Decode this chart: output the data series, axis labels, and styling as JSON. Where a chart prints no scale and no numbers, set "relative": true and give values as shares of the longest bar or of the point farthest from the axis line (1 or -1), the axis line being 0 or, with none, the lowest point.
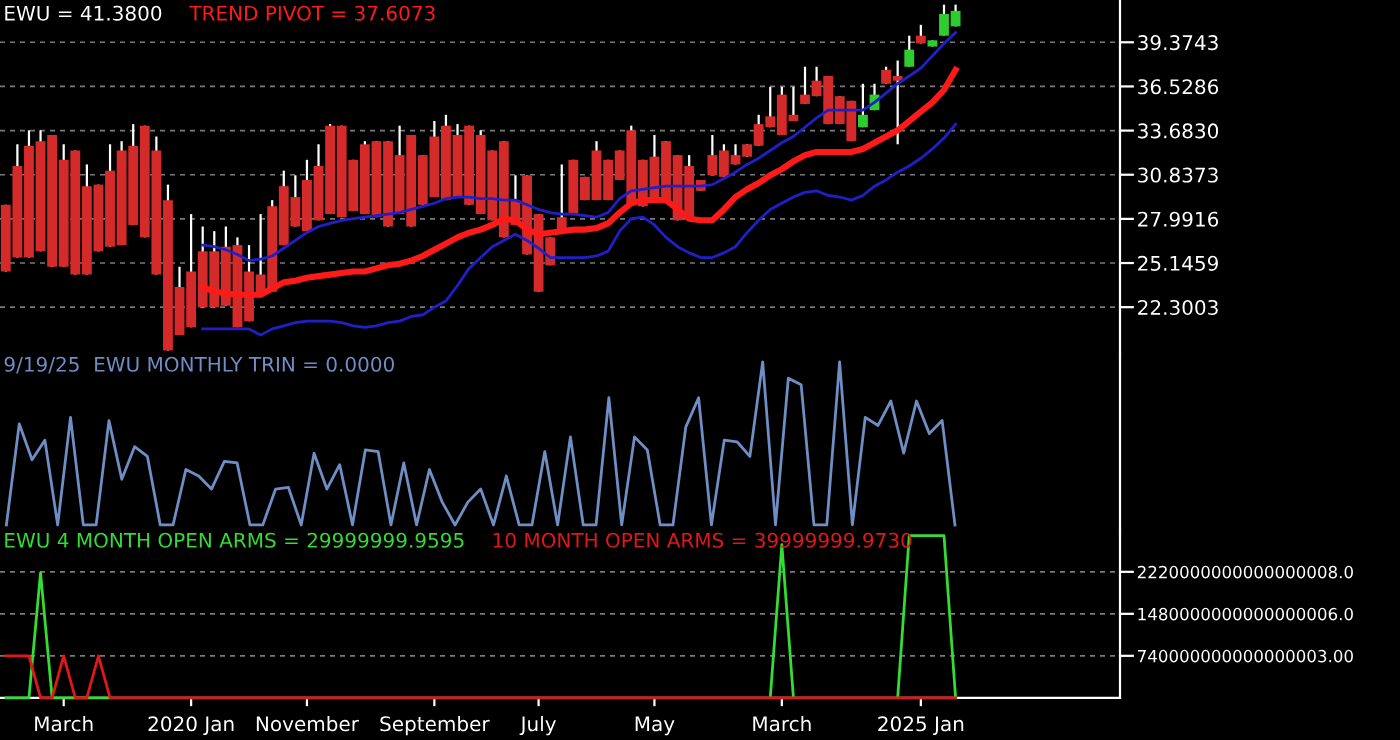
{
  "chart_data": [
    {
      "type": "candlestick",
      "title": "EWU = 41.3800",
      "categories": [
        null,
        null,
        null,
        null,
        null,
        null,
        null,
        null,
        null,
        null,
        null,
        null,
        null,
        null,
        null,
        null,
        null,
        null,
        null,
        null,
        null,
        null,
        null,
        null,
        null,
        null,
        null,
        null,
        null,
        null,
        null,
        null,
        null,
        null,
        null,
        null,
        null,
        null,
        null,
        null,
        null,
        null,
        null,
        null,
        null,
        null,
        null,
        null,
        null,
        null,
        null,
        null,
        null,
        null,
        null,
        null,
        null,
        null,
        null,
        null,
        null,
        null,
        null,
        null,
        null,
        null,
        null,
        null,
        null,
        null,
        null,
        null,
        null,
        null,
        null,
        null,
        null,
        null,
        null,
        null,
        null,
        null,
        null
      ],
      "ohlc": [
        [
          28.9,
          28.9,
          24.6,
          24.6
        ],
        [
          31.4,
          32.8,
          25.5,
          25.5
        ],
        [
          32.7,
          33.7,
          25.5,
          25.5
        ],
        [
          33.0,
          33.7,
          25.9,
          25.9
        ],
        [
          33.4,
          33.4,
          24.9,
          24.9
        ],
        [
          31.8,
          32.8,
          24.9,
          24.9
        ],
        [
          32.4,
          32.4,
          24.4,
          24.4
        ],
        [
          30.1,
          31.5,
          24.4,
          24.4
        ],
        [
          30.2,
          30.2,
          25.9,
          25.9
        ],
        [
          31.1,
          32.8,
          26.2,
          26.2
        ],
        [
          32.4,
          33.0,
          26.3,
          26.3
        ],
        [
          32.7,
          34.1,
          27.6,
          27.6
        ],
        [
          34.0,
          34.0,
          26.8,
          26.8
        ],
        [
          32.4,
          33.3,
          24.4,
          24.4
        ],
        [
          29.2,
          30.2,
          19.5,
          19.5
        ],
        [
          23.6,
          24.9,
          20.5,
          20.5
        ],
        [
          24.6,
          28.3,
          21.0,
          21.0
        ],
        [
          25.9,
          27.5,
          22.3,
          22.3
        ],
        [
          25.9,
          27.2,
          22.3,
          22.3
        ],
        [
          26.2,
          27.5,
          22.4,
          22.4
        ],
        [
          26.3,
          26.8,
          21.0,
          21.0
        ],
        [
          24.6,
          26.3,
          21.4,
          21.4
        ],
        [
          24.4,
          28.3,
          23.1,
          23.1
        ],
        [
          28.8,
          29.2,
          23.3,
          23.3
        ],
        [
          30.1,
          31.1,
          26.3,
          26.3
        ],
        [
          29.4,
          30.8,
          27.5,
          27.5
        ],
        [
          30.5,
          31.8,
          27.2,
          27.2
        ],
        [
          31.4,
          32.8,
          27.9,
          27.9
        ],
        [
          34.0,
          34.1,
          28.3,
          28.3
        ],
        [
          34.0,
          34.0,
          28.1,
          28.1
        ],
        [
          31.8,
          31.8,
          28.5,
          28.5
        ],
        [
          32.8,
          33.0,
          28.3,
          28.3
        ],
        [
          33.0,
          33.0,
          28.1,
          28.1
        ],
        [
          33.0,
          33.0,
          27.5,
          27.5
        ],
        [
          32.1,
          34.0,
          28.3,
          28.3
        ],
        [
          33.4,
          33.4,
          27.5,
          27.5
        ],
        [
          32.1,
          32.1,
          28.9,
          28.9
        ],
        [
          33.3,
          34.3,
          29.4,
          29.4
        ],
        [
          34.0,
          34.7,
          29.2,
          29.2
        ],
        [
          33.4,
          34.1,
          29.4,
          29.4
        ],
        [
          34.0,
          34.0,
          28.9,
          28.9
        ],
        [
          33.4,
          33.7,
          28.3,
          28.3
        ],
        [
          32.4,
          32.4,
          27.9,
          27.9
        ],
        [
          33.0,
          33.0,
          26.8,
          26.8
        ],
        [
          29.2,
          30.8,
          27.6,
          27.6
        ],
        [
          30.8,
          30.8,
          25.7,
          25.7
        ],
        [
          28.3,
          28.3,
          23.3,
          23.3
        ],
        [
          26.8,
          26.8,
          25.0,
          25.0
        ],
        [
          28.1,
          31.5,
          27.2,
          27.2
        ],
        [
          31.8,
          31.8,
          28.3,
          28.3
        ],
        [
          30.7,
          30.7,
          29.2,
          29.2
        ],
        [
          32.4,
          33.0,
          29.2,
          29.2
        ],
        [
          31.8,
          31.8,
          29.2,
          29.2
        ],
        [
          32.4,
          32.4,
          30.5,
          30.5
        ],
        [
          33.7,
          34.0,
          28.9,
          28.9
        ],
        [
          31.8,
          31.8,
          28.8,
          28.8
        ],
        [
          32.0,
          33.4,
          29.4,
          29.4
        ],
        [
          33.0,
          33.0,
          29.2,
          29.2
        ],
        [
          32.1,
          32.1,
          27.9,
          27.9
        ],
        [
          31.4,
          32.1,
          28.1,
          28.1
        ],
        [
          30.5,
          30.5,
          29.8,
          29.8
        ],
        [
          32.1,
          33.4,
          30.8,
          30.8
        ],
        [
          32.4,
          32.8,
          30.7,
          30.7
        ],
        [
          32.1,
          32.8,
          31.5,
          31.5
        ],
        [
          32.8,
          32.8,
          32.0,
          32.0
        ],
        [
          34.1,
          34.7,
          32.7,
          32.7
        ],
        [
          34.6,
          36.5,
          33.9,
          33.9
        ],
        [
          36.0,
          36.5,
          33.4,
          33.4
        ],
        [
          34.7,
          36.5,
          34.3,
          34.3
        ],
        [
          36.0,
          37.8,
          35.4,
          35.4
        ],
        [
          36.9,
          37.8,
          35.9,
          35.9
        ],
        [
          37.2,
          37.2,
          34.1,
          34.1
        ],
        [
          35.9,
          35.9,
          34.1,
          34.1
        ],
        [
          35.6,
          35.6,
          33.0,
          33.0
        ],
        [
          33.9,
          36.7,
          33.9,
          34.7
        ],
        [
          35.0,
          36.7,
          35.0,
          36.0
        ],
        [
          37.6,
          37.8,
          36.7,
          36.7
        ],
        [
          37.2,
          38.2,
          32.8,
          36.9
        ],
        [
          37.8,
          39.8,
          37.8,
          38.9
        ],
        [
          39.8,
          40.5,
          39.3,
          39.3
        ],
        [
          39.1,
          39.5,
          39.1,
          39.5
        ],
        [
          39.8,
          41.8,
          39.8,
          41.2
        ],
        [
          40.4,
          41.8,
          40.4,
          41.4
        ]
      ],
      "colors": [
        "#d42a2a",
        "#d42a2a",
        "#d42a2a",
        "#d42a2a",
        "#d42a2a",
        "#d42a2a",
        "#d42a2a",
        "#d42a2a",
        "#d42a2a",
        "#d42a2a",
        "#d42a2a",
        "#d42a2a",
        "#d42a2a",
        "#d42a2a",
        "#d42a2a",
        "#d42a2a",
        "#d42a2a",
        "#d42a2a",
        "#d42a2a",
        "#d42a2a",
        "#d42a2a",
        "#d42a2a",
        "#d42a2a",
        "#d42a2a",
        "#d42a2a",
        "#d42a2a",
        "#d42a2a",
        "#d42a2a",
        "#d42a2a",
        "#d42a2a",
        "#d42a2a",
        "#d42a2a",
        "#d42a2a",
        "#d42a2a",
        "#d42a2a",
        "#d42a2a",
        "#d42a2a",
        "#d42a2a",
        "#d42a2a",
        "#d42a2a",
        "#d42a2a",
        "#d42a2a",
        "#d42a2a",
        "#d42a2a",
        "#d42a2a",
        "#d42a2a",
        "#d42a2a",
        "#d42a2a",
        "#d42a2a",
        "#d42a2a",
        "#d42a2a",
        "#d42a2a",
        "#d42a2a",
        "#d42a2a",
        "#d42a2a",
        "#d42a2a",
        "#d42a2a",
        "#d42a2a",
        "#d42a2a",
        "#d42a2a",
        "#d42a2a",
        "#d42a2a",
        "#d42a2a",
        "#d42a2a",
        "#d42a2a",
        "#d42a2a",
        "#d42a2a",
        "#d42a2a",
        "#d42a2a",
        "#d42a2a",
        "#d42a2a",
        "#d42a2a",
        "#d42a2a",
        "#d42a2a",
        "#2ecc2e",
        "#2ecc2e",
        "#d42a2a",
        "#d42a2a",
        "#2ecc2e",
        "#d42a2a",
        "#2ecc2e",
        "#2ecc2e",
        "#2ecc2e"
      ],
      "series": [
        {
          "type": "line",
          "name": "TREND PIVOT = 37.6073",
          "color": "#ff1a1a",
          "values": [
            null,
            null,
            null,
            null,
            null,
            null,
            null,
            null,
            null,
            null,
            null,
            null,
            null,
            null,
            null,
            null,
            null,
            23.6,
            23.3,
            23.2,
            23.1,
            23.1,
            23.1,
            23.5,
            23.9,
            24.0,
            24.2,
            24.3,
            24.4,
            24.5,
            24.6,
            24.6,
            24.8,
            25.0,
            25.1,
            25.3,
            25.6,
            26.0,
            26.4,
            26.8,
            27.1,
            27.3,
            27.6,
            28.0,
            27.9,
            27.3,
            27.0,
            27.1,
            27.2,
            27.3,
            27.3,
            27.4,
            27.7,
            28.4,
            29.0,
            29.2,
            29.2,
            29.2,
            28.6,
            28.0,
            27.9,
            27.9,
            28.6,
            29.4,
            29.9,
            30.3,
            30.8,
            31.2,
            31.7,
            32.1,
            32.3,
            32.3,
            32.3,
            32.3,
            32.5,
            32.9,
            33.3,
            33.7,
            34.3,
            34.9,
            35.5,
            36.3,
            37.6
          ]
        },
        {
          "type": "line",
          "color": "#2020c8",
          "values": [
            null,
            null,
            null,
            null,
            null,
            null,
            null,
            null,
            null,
            null,
            null,
            null,
            null,
            null,
            null,
            null,
            null,
            26.3,
            26.2,
            26.0,
            25.7,
            25.3,
            25.4,
            25.6,
            26.1,
            26.6,
            27.1,
            27.5,
            27.7,
            27.9,
            28.0,
            28.1,
            28.2,
            28.3,
            28.4,
            28.6,
            28.8,
            29.0,
            29.3,
            29.4,
            29.4,
            29.3,
            29.3,
            29.2,
            29.2,
            28.9,
            28.6,
            28.4,
            28.3,
            28.3,
            28.2,
            28.1,
            28.4,
            29.3,
            29.8,
            29.9,
            30.0,
            30.1,
            30.1,
            30.1,
            30.1,
            30.2,
            30.6,
            31.0,
            31.5,
            31.9,
            32.4,
            32.9,
            33.3,
            33.9,
            34.5,
            35.0,
            35.0,
            35.0,
            35.0,
            35.5,
            36.1,
            36.7,
            37.2,
            37.7,
            38.5,
            39.3,
            40.0
          ]
        },
        {
          "type": "line",
          "color": "#2020c8",
          "values": [
            null,
            null,
            null,
            null,
            null,
            null,
            null,
            null,
            null,
            null,
            null,
            null,
            null,
            null,
            null,
            null,
            null,
            20.9,
            20.9,
            20.9,
            20.9,
            20.9,
            20.5,
            20.9,
            21.1,
            21.3,
            21.4,
            21.4,
            21.4,
            21.3,
            21.1,
            21.0,
            21.1,
            21.3,
            21.4,
            21.7,
            21.8,
            22.3,
            22.7,
            23.7,
            24.8,
            25.5,
            26.2,
            26.6,
            27.0,
            26.6,
            26.1,
            25.5,
            25.5,
            25.5,
            25.5,
            25.6,
            25.9,
            27.2,
            28.0,
            28.1,
            27.6,
            26.8,
            26.2,
            25.8,
            25.5,
            25.5,
            25.8,
            26.2,
            27.1,
            27.9,
            28.6,
            29.0,
            29.4,
            29.7,
            29.8,
            29.5,
            29.4,
            29.2,
            29.5,
            30.1,
            30.5,
            31.0,
            31.4,
            31.9,
            32.5,
            33.2,
            34.1
          ]
        }
      ],
      "ylim": [
        19.3,
        42.1
      ],
      "yticks": [
        22.3003,
        25.1459,
        27.9916,
        30.8373,
        {
          "value": 33.683,
          "label": "33.6830"
        },
        36.5286,
        39.3743
      ],
      "grid": "y",
      "tick_labels": "y"
    },
    {
      "type": "line",
      "relative": true,
      "tick_labels": false,
      "categories": [
        null,
        null,
        null,
        null,
        null,
        null,
        null,
        null,
        null,
        null,
        null,
        null,
        null,
        null,
        null,
        null,
        null,
        null,
        null,
        null,
        null,
        null,
        null,
        null,
        null,
        null,
        null,
        null,
        null,
        null,
        null,
        null,
        null,
        null,
        null,
        null,
        null,
        null,
        null,
        null,
        null,
        null,
        null,
        null,
        null,
        null,
        null,
        null,
        null,
        null,
        null,
        null,
        null,
        null,
        null,
        null,
        null,
        null,
        null,
        null,
        null,
        null,
        null,
        null,
        null,
        null,
        null,
        null,
        null,
        null,
        null,
        null,
        null,
        null,
        null
      ],
      "series": [
        {
          "name": "9/19/25  EWU MONTHLY TRIN = 0.0000",
          "color": "#6f8fc4",
          "values": [
            0,
            0.62,
            0.4,
            0.52,
            0,
            0.66,
            0,
            0,
            0.64,
            0.28,
            0.48,
            0.42,
            0,
            0,
            0.34,
            0.3,
            0.22,
            0.39,
            0.38,
            0,
            0,
            0.22,
            0.23,
            0,
            0.44,
            0.22,
            0.37,
            0,
            0.46,
            0.45,
            0,
            0.38,
            0,
            0.34,
            0.14,
            0,
            0.14,
            0.22,
            0,
            0.3,
            0,
            0,
            0.45,
            0,
            0.54,
            0,
            0,
            0.78,
            0,
            0.54,
            0.46,
            0,
            0,
            0.6,
            0.78,
            0,
            0.52,
            0.51,
            0.42,
            1,
            0,
            0.9,
            0.86,
            0,
            0,
            1,
            0,
            0.66,
            0.61,
            0.76,
            0.44,
            0.76,
            0.56,
            0.64,
            0
          ]
        }
      ]
    },
    {
      "type": "line",
      "categories": [
        null,
        null,
        null,
        null,
        null,
        "March",
        null,
        null,
        null,
        null,
        null,
        null,
        null,
        null,
        null,
        null,
        "2020 Jan",
        null,
        null,
        null,
        null,
        null,
        null,
        null,
        null,
        null,
        "November",
        null,
        null,
        null,
        null,
        null,
        null,
        null,
        null,
        null,
        null,
        "September",
        null,
        null,
        null,
        null,
        null,
        null,
        null,
        null,
        "July",
        null,
        null,
        null,
        null,
        null,
        null,
        null,
        null,
        null,
        "May",
        null,
        null,
        null,
        null,
        null,
        null,
        null,
        null,
        null,
        null,
        "March",
        null,
        null,
        null,
        null,
        null,
        null,
        null,
        null,
        null,
        null,
        null,
        "2025 Jan",
        null,
        null,
        null
      ],
      "series": [
        {
          "name": "EWU 4 MONTH OPEN ARMS = 29999999.9595",
          "color": "#33dd33",
          "values": [
            0,
            0,
            0,
            2.2e+18,
            0,
            0,
            0,
            0,
            0,
            0,
            null,
            null,
            null,
            null,
            null,
            null,
            null,
            null,
            null,
            null,
            null,
            null,
            null,
            null,
            null,
            null,
            null,
            null,
            null,
            null,
            null,
            null,
            null,
            null,
            null,
            null,
            null,
            null,
            null,
            null,
            null,
            null,
            null,
            null,
            null,
            null,
            null,
            null,
            null,
            null,
            null,
            null,
            null,
            null,
            null,
            null,
            null,
            null,
            null,
            null,
            null,
            null,
            null,
            null,
            null,
            null,
            0,
            2.7e+18,
            0,
            null,
            null,
            null,
            null,
            null,
            null,
            null,
            null,
            0,
            2.86e+18,
            2.86e+18,
            2.86e+18,
            2.86e+18,
            0
          ]
        },
        {
          "name": "10 MONTH OPEN ARMS = 39999999.9730",
          "color": "#e01818",
          "values": [
            7.4e+17,
            7.4e+17,
            7.4e+17,
            0,
            0,
            7.4e+17,
            0,
            0,
            7.4e+17,
            0,
            0,
            0,
            0,
            0,
            0,
            0,
            0,
            0,
            0,
            0,
            0,
            0,
            0,
            0,
            0,
            0,
            0,
            0,
            0,
            0,
            0,
            0,
            0,
            0,
            0,
            0,
            0,
            0,
            0,
            0,
            0,
            0,
            0,
            0,
            0,
            0,
            0,
            0,
            0,
            0,
            0,
            0,
            0,
            0,
            0,
            0,
            0,
            0,
            0,
            0,
            0,
            0,
            0,
            0,
            0,
            0,
            0,
            0,
            0,
            0,
            0,
            0,
            0,
            0,
            0,
            0,
            0,
            0,
            0,
            0,
            0,
            0,
            0
          ]
        }
      ],
      "ylim": [
        0,
        2.96e+18
      ],
      "yticks": [
        {
          "value": 7.4e+17,
          "label": "740000000000000003.00"
        },
        {
          "value": 1.48e+18,
          "label": "1480000000000000006.0"
        },
        {
          "value": 2.22e+18,
          "label": "2220000000000000008.0"
        }
      ],
      "grid": "y"
    }
  ]
}
